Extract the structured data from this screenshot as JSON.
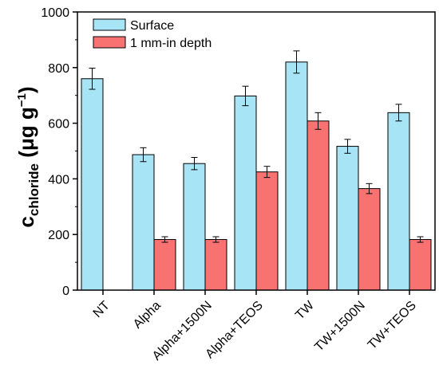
{
  "chart_data": {
    "type": "bar",
    "title": "",
    "xlabel": "",
    "ylabel": {
      "main": "c",
      "subscript": "chloride",
      "unit_open": " (μg g",
      "unit_sup": "−1",
      "unit_close": ")"
    },
    "ylim": [
      0,
      1000
    ],
    "yticks": [
      0,
      200,
      400,
      600,
      800,
      1000
    ],
    "categories": [
      "NT",
      "Alpha",
      "Alpha+1500N",
      "Alpha+TEOS",
      "TW",
      "TW+1500N",
      "TW+TEOS"
    ],
    "series": [
      {
        "name": "Surface",
        "color": "#a6e4f6",
        "values": [
          760,
          487,
          455,
          698,
          820,
          517,
          638
        ],
        "errors": [
          38,
          25,
          22,
          35,
          40,
          25,
          30
        ]
      },
      {
        "name": "1 mm-in depth",
        "color": "#f97272",
        "values": [
          null,
          182,
          182,
          425,
          608,
          365,
          182
        ],
        "errors": [
          null,
          10,
          10,
          20,
          30,
          18,
          10
        ]
      }
    ],
    "legend_position": "top-left",
    "grid": false
  }
}
